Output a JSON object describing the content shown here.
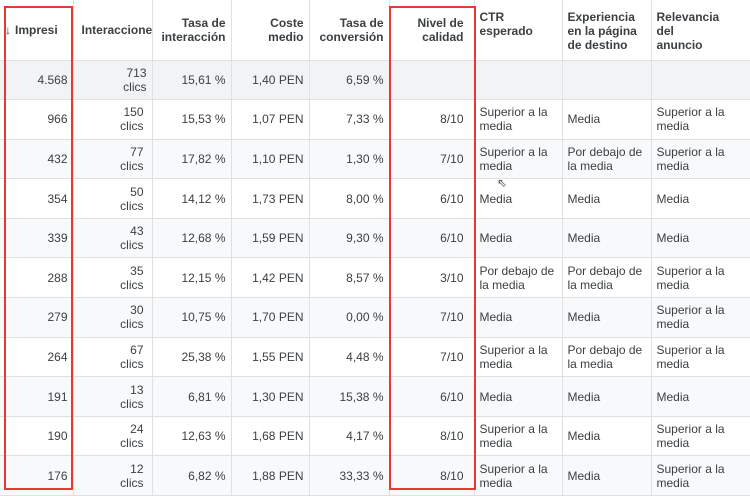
{
  "headers": {
    "impresiones": "Impresi",
    "interacciones": "Interacciones",
    "tasa_interaccion": "Tasa de interacción",
    "coste_medio": "Coste medio",
    "tasa_conversion": "Tasa de conversión",
    "nivel_calidad": "Nivel de calidad",
    "ctr": "CTR esperado",
    "experiencia": "Experiencia en la página de destino",
    "relevancia": "Relevancia del anuncio"
  },
  "total": {
    "impresiones": "4.568",
    "interacciones": "713 clics",
    "tasa_interaccion": "15,61 %",
    "coste_medio": "1,40 PEN",
    "tasa_conversion": "6,59 %"
  },
  "rows": [
    {
      "impresiones": "966",
      "interacciones": "150 clics",
      "tasa_interaccion": "15,53 %",
      "coste_medio": "1,07 PEN",
      "tasa_conversion": "7,33 %",
      "nivel_calidad": "8/10",
      "ctr": "Superior a la media",
      "experiencia": "Media",
      "relevancia": "Superior a la media"
    },
    {
      "impresiones": "432",
      "interacciones": "77 clics",
      "tasa_interaccion": "17,82 %",
      "coste_medio": "1,10 PEN",
      "tasa_conversion": "1,30 %",
      "nivel_calidad": "7/10",
      "ctr": "Superior a la media",
      "experiencia": "Por debajo de la media",
      "relevancia": "Superior a la media"
    },
    {
      "impresiones": "354",
      "interacciones": "50 clics",
      "tasa_interaccion": "14,12 %",
      "coste_medio": "1,73 PEN",
      "tasa_conversion": "8,00 %",
      "nivel_calidad": "6/10",
      "ctr": "Media",
      "experiencia": "Media",
      "relevancia": "Media"
    },
    {
      "impresiones": "339",
      "interacciones": "43 clics",
      "tasa_interaccion": "12,68 %",
      "coste_medio": "1,59 PEN",
      "tasa_conversion": "9,30 %",
      "nivel_calidad": "6/10",
      "ctr": "Media",
      "experiencia": "Media",
      "relevancia": "Media"
    },
    {
      "impresiones": "288",
      "interacciones": "35 clics",
      "tasa_interaccion": "12,15 %",
      "coste_medio": "1,42 PEN",
      "tasa_conversion": "8,57 %",
      "nivel_calidad": "3/10",
      "ctr": "Por debajo de la media",
      "experiencia": "Por debajo de la media",
      "relevancia": "Superior a la media"
    },
    {
      "impresiones": "279",
      "interacciones": "30 clics",
      "tasa_interaccion": "10,75 %",
      "coste_medio": "1,70 PEN",
      "tasa_conversion": "0,00 %",
      "nivel_calidad": "7/10",
      "ctr": "Media",
      "experiencia": "Media",
      "relevancia": "Superior a la media"
    },
    {
      "impresiones": "264",
      "interacciones": "67 clics",
      "tasa_interaccion": "25,38 %",
      "coste_medio": "1,55 PEN",
      "tasa_conversion": "4,48 %",
      "nivel_calidad": "7/10",
      "ctr": "Superior a la media",
      "experiencia": "Por debajo de la media",
      "relevancia": "Superior a la media"
    },
    {
      "impresiones": "191",
      "interacciones": "13 clics",
      "tasa_interaccion": "6,81 %",
      "coste_medio": "1,30 PEN",
      "tasa_conversion": "15,38 %",
      "nivel_calidad": "6/10",
      "ctr": "Media",
      "experiencia": "Media",
      "relevancia": "Media"
    },
    {
      "impresiones": "190",
      "interacciones": "24 clics",
      "tasa_interaccion": "12,63 %",
      "coste_medio": "1,68 PEN",
      "tasa_conversion": "4,17 %",
      "nivel_calidad": "8/10",
      "ctr": "Superior a la media",
      "experiencia": "Media",
      "relevancia": "Superior a la media"
    },
    {
      "impresiones": "176",
      "interacciones": "12 clics",
      "tasa_interaccion": "6,82 %",
      "coste_medio": "1,88 PEN",
      "tasa_conversion": "33,33 %",
      "nivel_calidad": "8/10",
      "ctr": "Superior a la media",
      "experiencia": "Media",
      "relevancia": "Superior a la media"
    }
  ],
  "colors": {
    "highlight": "#e53935",
    "grid": "#e0e0e0",
    "total_bg": "#f1f3f4"
  },
  "sort_icon": "arrow-down-icon"
}
